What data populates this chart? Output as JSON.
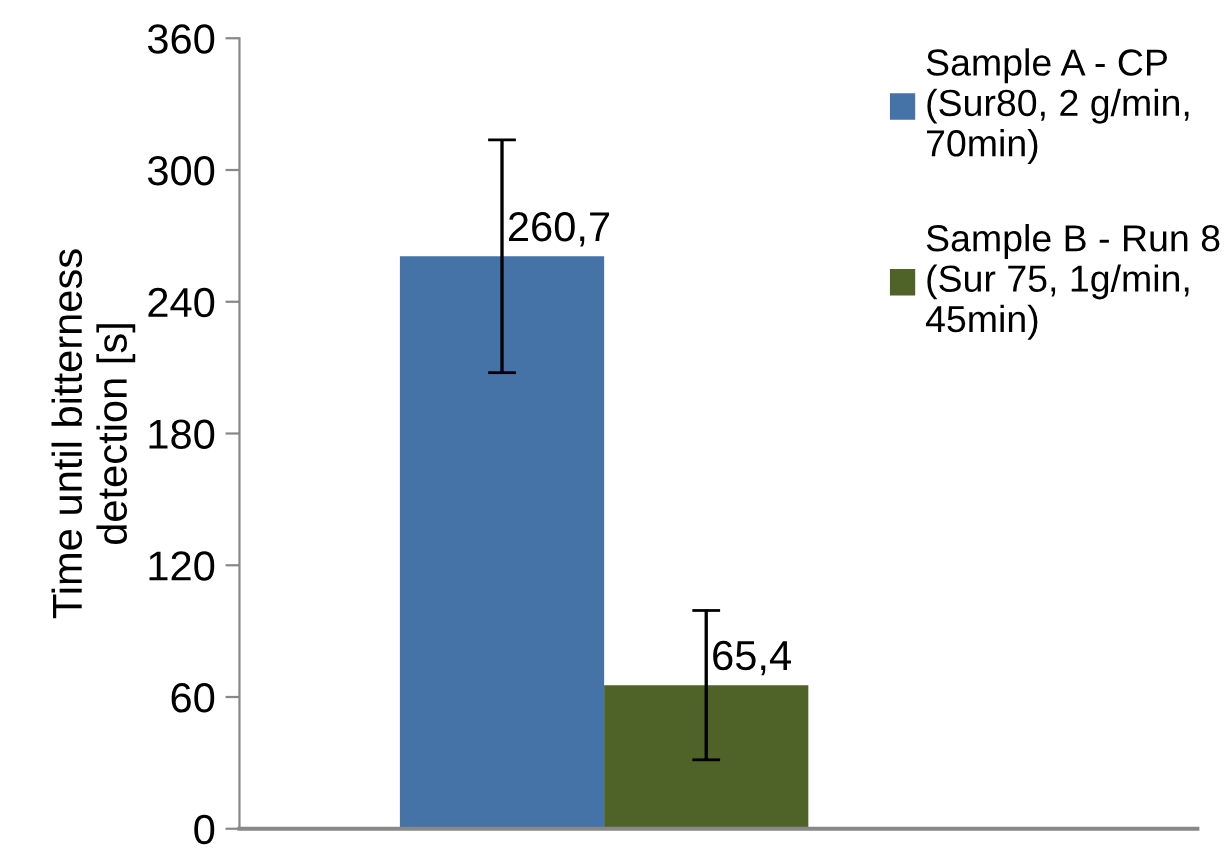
{
  "chart_data": {
    "type": "bar",
    "ylabel": "Time until bitterness\ndetection [s]",
    "categories": [
      null
    ],
    "series": [
      {
        "name": "Sample A - CP\n(Sur80, 2 g/min,\n70min)",
        "color": "#4572a7",
        "values": [
          260.7
        ],
        "errors": [
          53
        ],
        "value_labels": [
          "260,7"
        ]
      },
      {
        "name": "Sample B - Run 8\n(Sur 75, 1g/min,\n45min)",
        "color": "#4f6228",
        "values": [
          65.4
        ],
        "errors": [
          34
        ],
        "value_labels": [
          "65,4"
        ]
      }
    ],
    "ylim": [
      0,
      360
    ],
    "yticks": [
      0,
      60,
      120,
      180,
      240,
      300,
      360
    ],
    "grid": false,
    "legend": "right"
  }
}
